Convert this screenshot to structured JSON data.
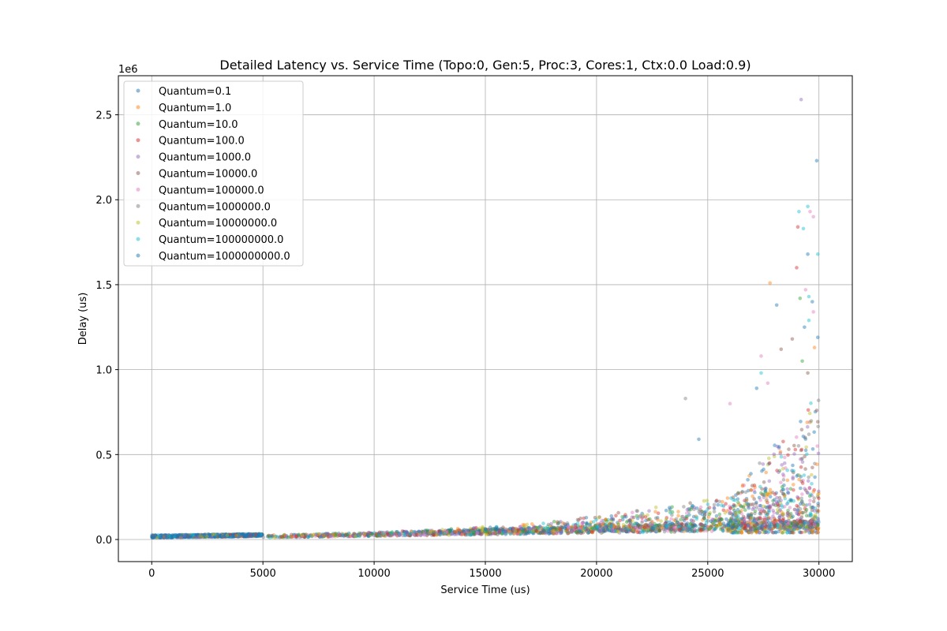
{
  "chart_data": {
    "type": "scatter",
    "title": "Detailed Latency vs. Service Time (Topo:0, Gen:5, Proc:3, Cores:1, Ctx:0.0 Load:0.9)",
    "xlabel": "Service Time (us)",
    "ylabel": "Delay (us)",
    "y_scale_label": "1e6",
    "xlim": [
      -1500,
      31500
    ],
    "ylim": [
      -130000,
      2730000
    ],
    "x_ticks": [
      0,
      5000,
      10000,
      15000,
      20000,
      25000,
      30000
    ],
    "x_tick_labels": [
      "0",
      "5000",
      "10000",
      "15000",
      "20000",
      "25000",
      "30000"
    ],
    "y_ticks": [
      0,
      500000,
      1000000,
      1500000,
      2000000,
      2500000
    ],
    "y_tick_labels": [
      "0.0",
      "0.5",
      "1.0",
      "1.5",
      "2.0",
      "2.5"
    ],
    "grid": true,
    "legend_position": "upper-left",
    "series": [
      {
        "name": "Quantum=0.1",
        "color": "#1f77b4"
      },
      {
        "name": "Quantum=1.0",
        "color": "#ff7f0e"
      },
      {
        "name": "Quantum=10.0",
        "color": "#2ca02c"
      },
      {
        "name": "Quantum=100.0",
        "color": "#d62728"
      },
      {
        "name": "Quantum=1000.0",
        "color": "#9467bd"
      },
      {
        "name": "Quantum=10000.0",
        "color": "#8c564b"
      },
      {
        "name": "Quantum=100000.0",
        "color": "#e377c2"
      },
      {
        "name": "Quantum=1000000.0",
        "color": "#7f7f7f"
      },
      {
        "name": "Quantum=10000000.0",
        "color": "#bcbd22"
      },
      {
        "name": "Quantum=100000000.0",
        "color": "#17becf"
      },
      {
        "name": "Quantum=1000000000.0",
        "color": "#1f77b4"
      }
    ],
    "outliers": [
      {
        "x": 29200,
        "y": 2590000,
        "series": 4
      },
      {
        "x": 29900,
        "y": 2230000,
        "series": 0
      },
      {
        "x": 29500,
        "y": 1960000,
        "series": 9
      },
      {
        "x": 29600,
        "y": 1930000,
        "series": 6
      },
      {
        "x": 29100,
        "y": 1930000,
        "series": 9
      },
      {
        "x": 29750,
        "y": 1900000,
        "series": 6
      },
      {
        "x": 29050,
        "y": 1840000,
        "series": 3
      },
      {
        "x": 29300,
        "y": 1830000,
        "series": 9
      },
      {
        "x": 29500,
        "y": 1680000,
        "series": 0
      },
      {
        "x": 29950,
        "y": 1680000,
        "series": 9
      },
      {
        "x": 29000,
        "y": 1600000,
        "series": 3
      },
      {
        "x": 27800,
        "y": 1510000,
        "series": 1
      },
      {
        "x": 29400,
        "y": 1470000,
        "series": 6
      },
      {
        "x": 29550,
        "y": 1430000,
        "series": 9
      },
      {
        "x": 29150,
        "y": 1420000,
        "series": 2
      },
      {
        "x": 29700,
        "y": 1400000,
        "series": 0
      },
      {
        "x": 28100,
        "y": 1380000,
        "series": 0
      },
      {
        "x": 29750,
        "y": 1340000,
        "series": 6
      },
      {
        "x": 29350,
        "y": 1250000,
        "series": 0
      },
      {
        "x": 29550,
        "y": 1290000,
        "series": 9
      },
      {
        "x": 29950,
        "y": 1190000,
        "series": 0
      },
      {
        "x": 29250,
        "y": 1050000,
        "series": 2
      },
      {
        "x": 28800,
        "y": 1180000,
        "series": 5
      },
      {
        "x": 28300,
        "y": 1120000,
        "series": 5
      },
      {
        "x": 27400,
        "y": 1080000,
        "series": 6
      },
      {
        "x": 29800,
        "y": 1130000,
        "series": 1
      },
      {
        "x": 29500,
        "y": 980000,
        "series": 5
      },
      {
        "x": 27400,
        "y": 980000,
        "series": 9
      },
      {
        "x": 27700,
        "y": 920000,
        "series": 6
      },
      {
        "x": 27200,
        "y": 890000,
        "series": 0
      },
      {
        "x": 24000,
        "y": 830000,
        "series": 7
      },
      {
        "x": 26000,
        "y": 800000,
        "series": 6
      },
      {
        "x": 24600,
        "y": 590000,
        "series": 0
      },
      {
        "x": 29900,
        "y": 760000,
        "series": 5
      }
    ]
  }
}
